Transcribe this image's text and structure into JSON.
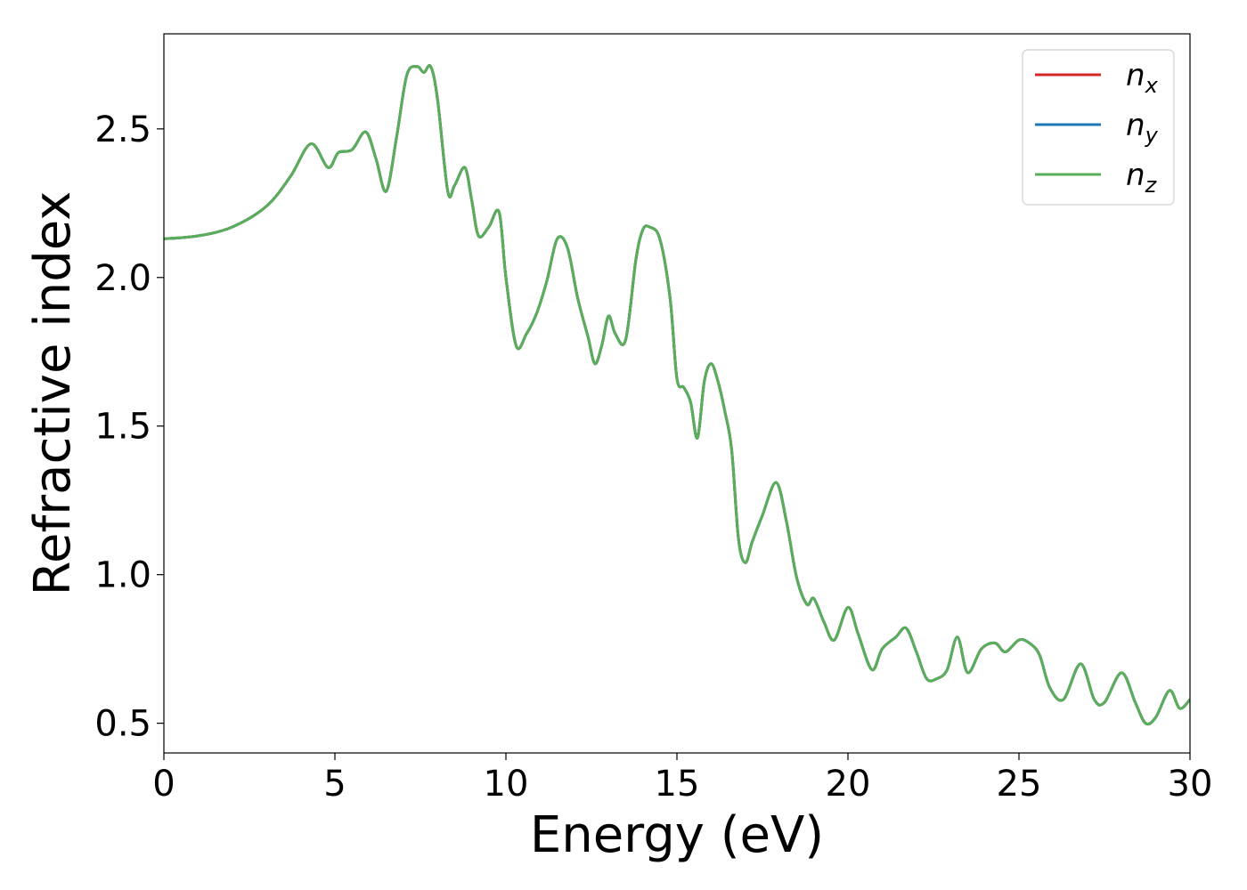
{
  "chart_data": {
    "type": "line",
    "xlabel": "Energy (eV)",
    "ylabel": "Refractive index",
    "xlim": [
      0,
      30
    ],
    "ylim": [
      0.4,
      2.82
    ],
    "xticks": [
      "0",
      "5",
      "10",
      "15",
      "20",
      "25",
      "30"
    ],
    "yticks": [
      "0.5",
      "1.0",
      "1.5",
      "2.0",
      "2.5"
    ],
    "xtick_values": [
      0,
      5,
      10,
      15,
      20,
      25,
      30
    ],
    "ytick_values": [
      0.5,
      1.0,
      1.5,
      2.0,
      2.5
    ],
    "grid": false,
    "legend_position": "top-right",
    "x": [
      0,
      1,
      2,
      3,
      3.7,
      4.3,
      4.8,
      5.1,
      5.5,
      5.9,
      6.2,
      6.5,
      6.8,
      7.1,
      7.4,
      7.6,
      7.8,
      8.0,
      8.3,
      8.5,
      8.8,
      9.0,
      9.2,
      9.5,
      9.8,
      10.0,
      10.3,
      10.6,
      10.9,
      11.2,
      11.5,
      11.8,
      12.1,
      12.4,
      12.6,
      12.8,
      13.0,
      13.2,
      13.5,
      13.8,
      14.0,
      14.2,
      14.5,
      14.8,
      15.0,
      15.2,
      15.4,
      15.6,
      15.8,
      16.0,
      16.2,
      16.4,
      16.6,
      16.8,
      17.0,
      17.2,
      17.5,
      17.9,
      18.2,
      18.5,
      18.8,
      19.0,
      19.3,
      19.6,
      20.0,
      20.3,
      20.7,
      21.0,
      21.4,
      21.7,
      22.0,
      22.3,
      22.6,
      22.9,
      23.2,
      23.5,
      23.9,
      24.3,
      24.6,
      25.0,
      25.3,
      25.6,
      25.9,
      26.3,
      26.8,
      27.2,
      27.5,
      28.0,
      28.4,
      28.7,
      29.0,
      29.4,
      29.7,
      30.0
    ],
    "series": [
      {
        "name": "n_x",
        "label_base": "n",
        "label_sub": "x",
        "color": "#d62728",
        "values": [
          2.13,
          2.14,
          2.17,
          2.24,
          2.34,
          2.45,
          2.37,
          2.42,
          2.43,
          2.49,
          2.4,
          2.29,
          2.47,
          2.68,
          2.71,
          2.69,
          2.71,
          2.6,
          2.29,
          2.31,
          2.37,
          2.26,
          2.14,
          2.17,
          2.22,
          2.0,
          1.77,
          1.81,
          1.88,
          1.99,
          2.13,
          2.1,
          1.93,
          1.8,
          1.71,
          1.77,
          1.87,
          1.81,
          1.79,
          2.06,
          2.16,
          2.17,
          2.13,
          1.93,
          1.66,
          1.63,
          1.58,
          1.46,
          1.65,
          1.71,
          1.65,
          1.55,
          1.42,
          1.12,
          1.04,
          1.11,
          1.2,
          1.31,
          1.18,
          0.99,
          0.9,
          0.92,
          0.84,
          0.78,
          0.89,
          0.8,
          0.68,
          0.75,
          0.79,
          0.82,
          0.74,
          0.65,
          0.65,
          0.68,
          0.79,
          0.67,
          0.75,
          0.77,
          0.74,
          0.78,
          0.77,
          0.73,
          0.62,
          0.58,
          0.7,
          0.58,
          0.57,
          0.67,
          0.57,
          0.5,
          0.52,
          0.61,
          0.55,
          0.58
        ]
      },
      {
        "name": "n_y",
        "label_base": "n",
        "label_sub": "y",
        "color": "#1f77b4",
        "values": [
          2.13,
          2.14,
          2.17,
          2.24,
          2.34,
          2.45,
          2.37,
          2.42,
          2.43,
          2.49,
          2.4,
          2.29,
          2.47,
          2.68,
          2.71,
          2.69,
          2.71,
          2.6,
          2.29,
          2.31,
          2.37,
          2.26,
          2.14,
          2.17,
          2.22,
          2.0,
          1.77,
          1.81,
          1.88,
          1.99,
          2.13,
          2.1,
          1.93,
          1.8,
          1.71,
          1.77,
          1.87,
          1.81,
          1.79,
          2.06,
          2.16,
          2.17,
          2.13,
          1.93,
          1.66,
          1.63,
          1.58,
          1.46,
          1.65,
          1.71,
          1.65,
          1.55,
          1.42,
          1.12,
          1.04,
          1.11,
          1.2,
          1.31,
          1.18,
          0.99,
          0.9,
          0.92,
          0.84,
          0.78,
          0.89,
          0.8,
          0.68,
          0.75,
          0.79,
          0.82,
          0.74,
          0.65,
          0.65,
          0.68,
          0.79,
          0.67,
          0.75,
          0.77,
          0.74,
          0.78,
          0.77,
          0.73,
          0.62,
          0.58,
          0.7,
          0.58,
          0.57,
          0.67,
          0.57,
          0.5,
          0.52,
          0.61,
          0.55,
          0.58
        ]
      },
      {
        "name": "n_z",
        "label_base": "n",
        "label_sub": "z",
        "color": "#5aae5a",
        "values": [
          2.13,
          2.14,
          2.17,
          2.24,
          2.34,
          2.45,
          2.37,
          2.42,
          2.43,
          2.49,
          2.4,
          2.29,
          2.47,
          2.68,
          2.71,
          2.69,
          2.71,
          2.6,
          2.29,
          2.31,
          2.37,
          2.26,
          2.14,
          2.17,
          2.22,
          2.0,
          1.77,
          1.81,
          1.88,
          1.99,
          2.13,
          2.1,
          1.93,
          1.8,
          1.71,
          1.77,
          1.87,
          1.81,
          1.79,
          2.06,
          2.16,
          2.17,
          2.13,
          1.93,
          1.66,
          1.63,
          1.58,
          1.46,
          1.65,
          1.71,
          1.65,
          1.55,
          1.42,
          1.12,
          1.04,
          1.11,
          1.2,
          1.31,
          1.18,
          0.99,
          0.9,
          0.92,
          0.84,
          0.78,
          0.89,
          0.8,
          0.68,
          0.75,
          0.79,
          0.82,
          0.74,
          0.65,
          0.65,
          0.68,
          0.79,
          0.67,
          0.75,
          0.77,
          0.74,
          0.78,
          0.77,
          0.73,
          0.62,
          0.58,
          0.7,
          0.58,
          0.57,
          0.67,
          0.57,
          0.5,
          0.52,
          0.61,
          0.55,
          0.58
        ]
      }
    ]
  }
}
